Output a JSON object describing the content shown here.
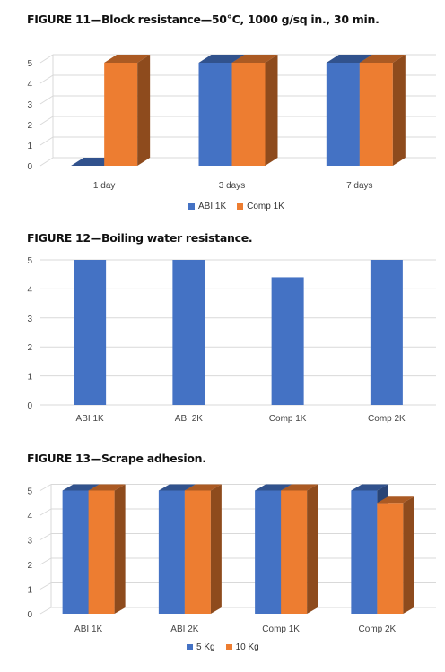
{
  "colors": {
    "blue": "#4472c4",
    "orange": "#ed7d31",
    "grid": "#d9d9d9",
    "axis": "#c8c8c8"
  },
  "chart_data": [
    {
      "type": "bar",
      "title": "FIGURE 11—Block resistance—50°C, 1000 g/sq in., 30 min.",
      "categories": [
        "1 day",
        "3 days",
        "7 days"
      ],
      "series": [
        {
          "name": "ABI 1K",
          "color": "#4472c4",
          "values": [
            0,
            5,
            5
          ]
        },
        {
          "name": "Comp 1K",
          "color": "#ed7d31",
          "values": [
            5,
            5,
            5
          ]
        }
      ],
      "yticks": [
        "0",
        "1",
        "2",
        "3",
        "4",
        "5"
      ],
      "ylim": [
        0,
        5
      ],
      "grid": true,
      "legend": "bottom",
      "style": "3d"
    },
    {
      "type": "bar",
      "title": "FIGURE 12—Boiling water resistance.",
      "categories": [
        "ABI 1K",
        "ABI 2K",
        "Comp 1K",
        "Comp 2K"
      ],
      "series": [
        {
          "color": "#4472c4",
          "values": [
            5,
            5,
            4.4,
            5
          ]
        }
      ],
      "yticks": [
        "0",
        "1",
        "2",
        "3",
        "4",
        "5"
      ],
      "ylim": [
        0,
        5
      ],
      "grid": true,
      "legend": "none",
      "style": "flat"
    },
    {
      "type": "bar",
      "title": "FIGURE 13—Scrape adhesion.",
      "categories": [
        "ABI 1K",
        "ABI 2K",
        "Comp 1K",
        "Comp 2K"
      ],
      "series": [
        {
          "name": "5 Kg",
          "color": "#4472c4",
          "values": [
            5,
            5,
            5,
            5
          ]
        },
        {
          "name": "10 Kg",
          "color": "#ed7d31",
          "values": [
            5,
            5,
            5,
            4.5
          ]
        }
      ],
      "yticks": [
        "0",
        "1",
        "2",
        "3",
        "4",
        "5"
      ],
      "ylim": [
        0,
        5
      ],
      "grid": true,
      "legend": "bottom",
      "style": "3d"
    }
  ]
}
